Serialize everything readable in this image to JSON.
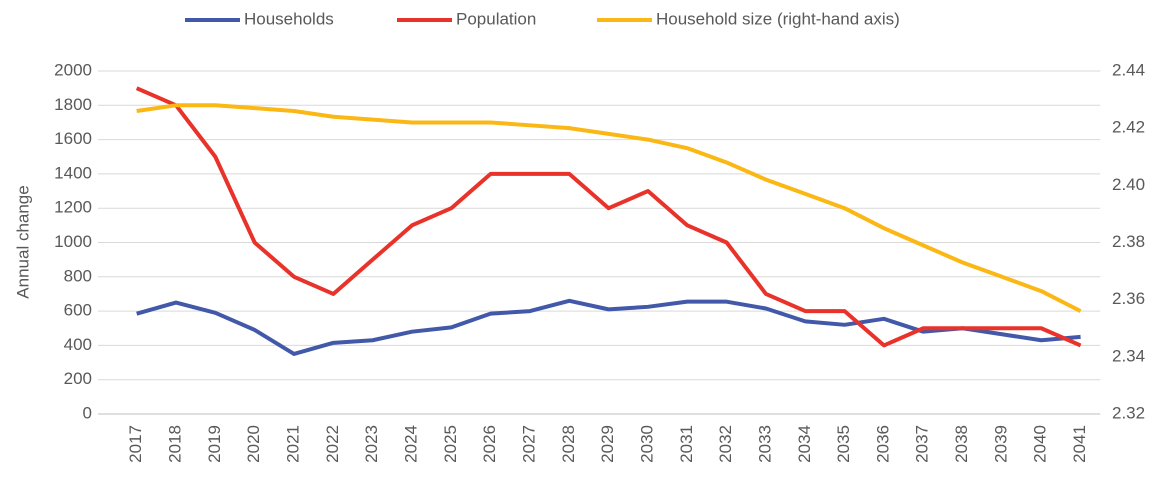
{
  "chart_data": {
    "type": "line",
    "y_label": "Annual change",
    "categories": [
      "2017",
      "2018",
      "2019",
      "2020",
      "2021",
      "2022",
      "2023",
      "2024",
      "2025",
      "2026",
      "2027",
      "2028",
      "2029",
      "2030",
      "2031",
      "2032",
      "2033",
      "2034",
      "2035",
      "2036",
      "2037",
      "2038",
      "2039",
      "2040",
      "2041"
    ],
    "series": [
      {
        "name": "Households",
        "color": "#4159a8",
        "values": [
          585,
          650,
          590,
          490,
          350,
          415,
          430,
          480,
          505,
          585,
          600,
          660,
          610,
          625,
          655,
          655,
          615,
          540,
          520,
          555,
          480,
          500,
          465,
          430,
          450
        ]
      },
      {
        "name": "Population",
        "color": "#e8322a",
        "values": [
          1900,
          1800,
          1500,
          1000,
          800,
          700,
          900,
          1100,
          1200,
          1400,
          1400,
          1400,
          1200,
          1300,
          1100,
          1000,
          700,
          600,
          600,
          400,
          500,
          500,
          500,
          500,
          400
        ]
      },
      {
        "name": "Household size (right-hand axis)",
        "color": "#fbb714",
        "axis": "y2",
        "values": [
          2.426,
          2.428,
          2.428,
          2.427,
          2.426,
          2.424,
          2.423,
          2.422,
          2.422,
          2.422,
          2.421,
          2.42,
          2.418,
          2.416,
          2.413,
          2.408,
          2.402,
          2.397,
          2.392,
          2.385,
          2.379,
          2.373,
          2.368,
          2.363,
          2.356
        ]
      }
    ],
    "ylim": [
      0,
      2000
    ],
    "yticks": [
      0,
      200,
      400,
      600,
      800,
      1000,
      1200,
      1400,
      1600,
      1800,
      2000
    ],
    "y2lim": [
      2.32,
      2.44
    ],
    "y2ticks": [
      2.32,
      2.34,
      2.36,
      2.38,
      {
        "value": 2.4,
        "label": "2.40"
      },
      2.42,
      2.44
    ],
    "grid": true,
    "legend": "top"
  }
}
